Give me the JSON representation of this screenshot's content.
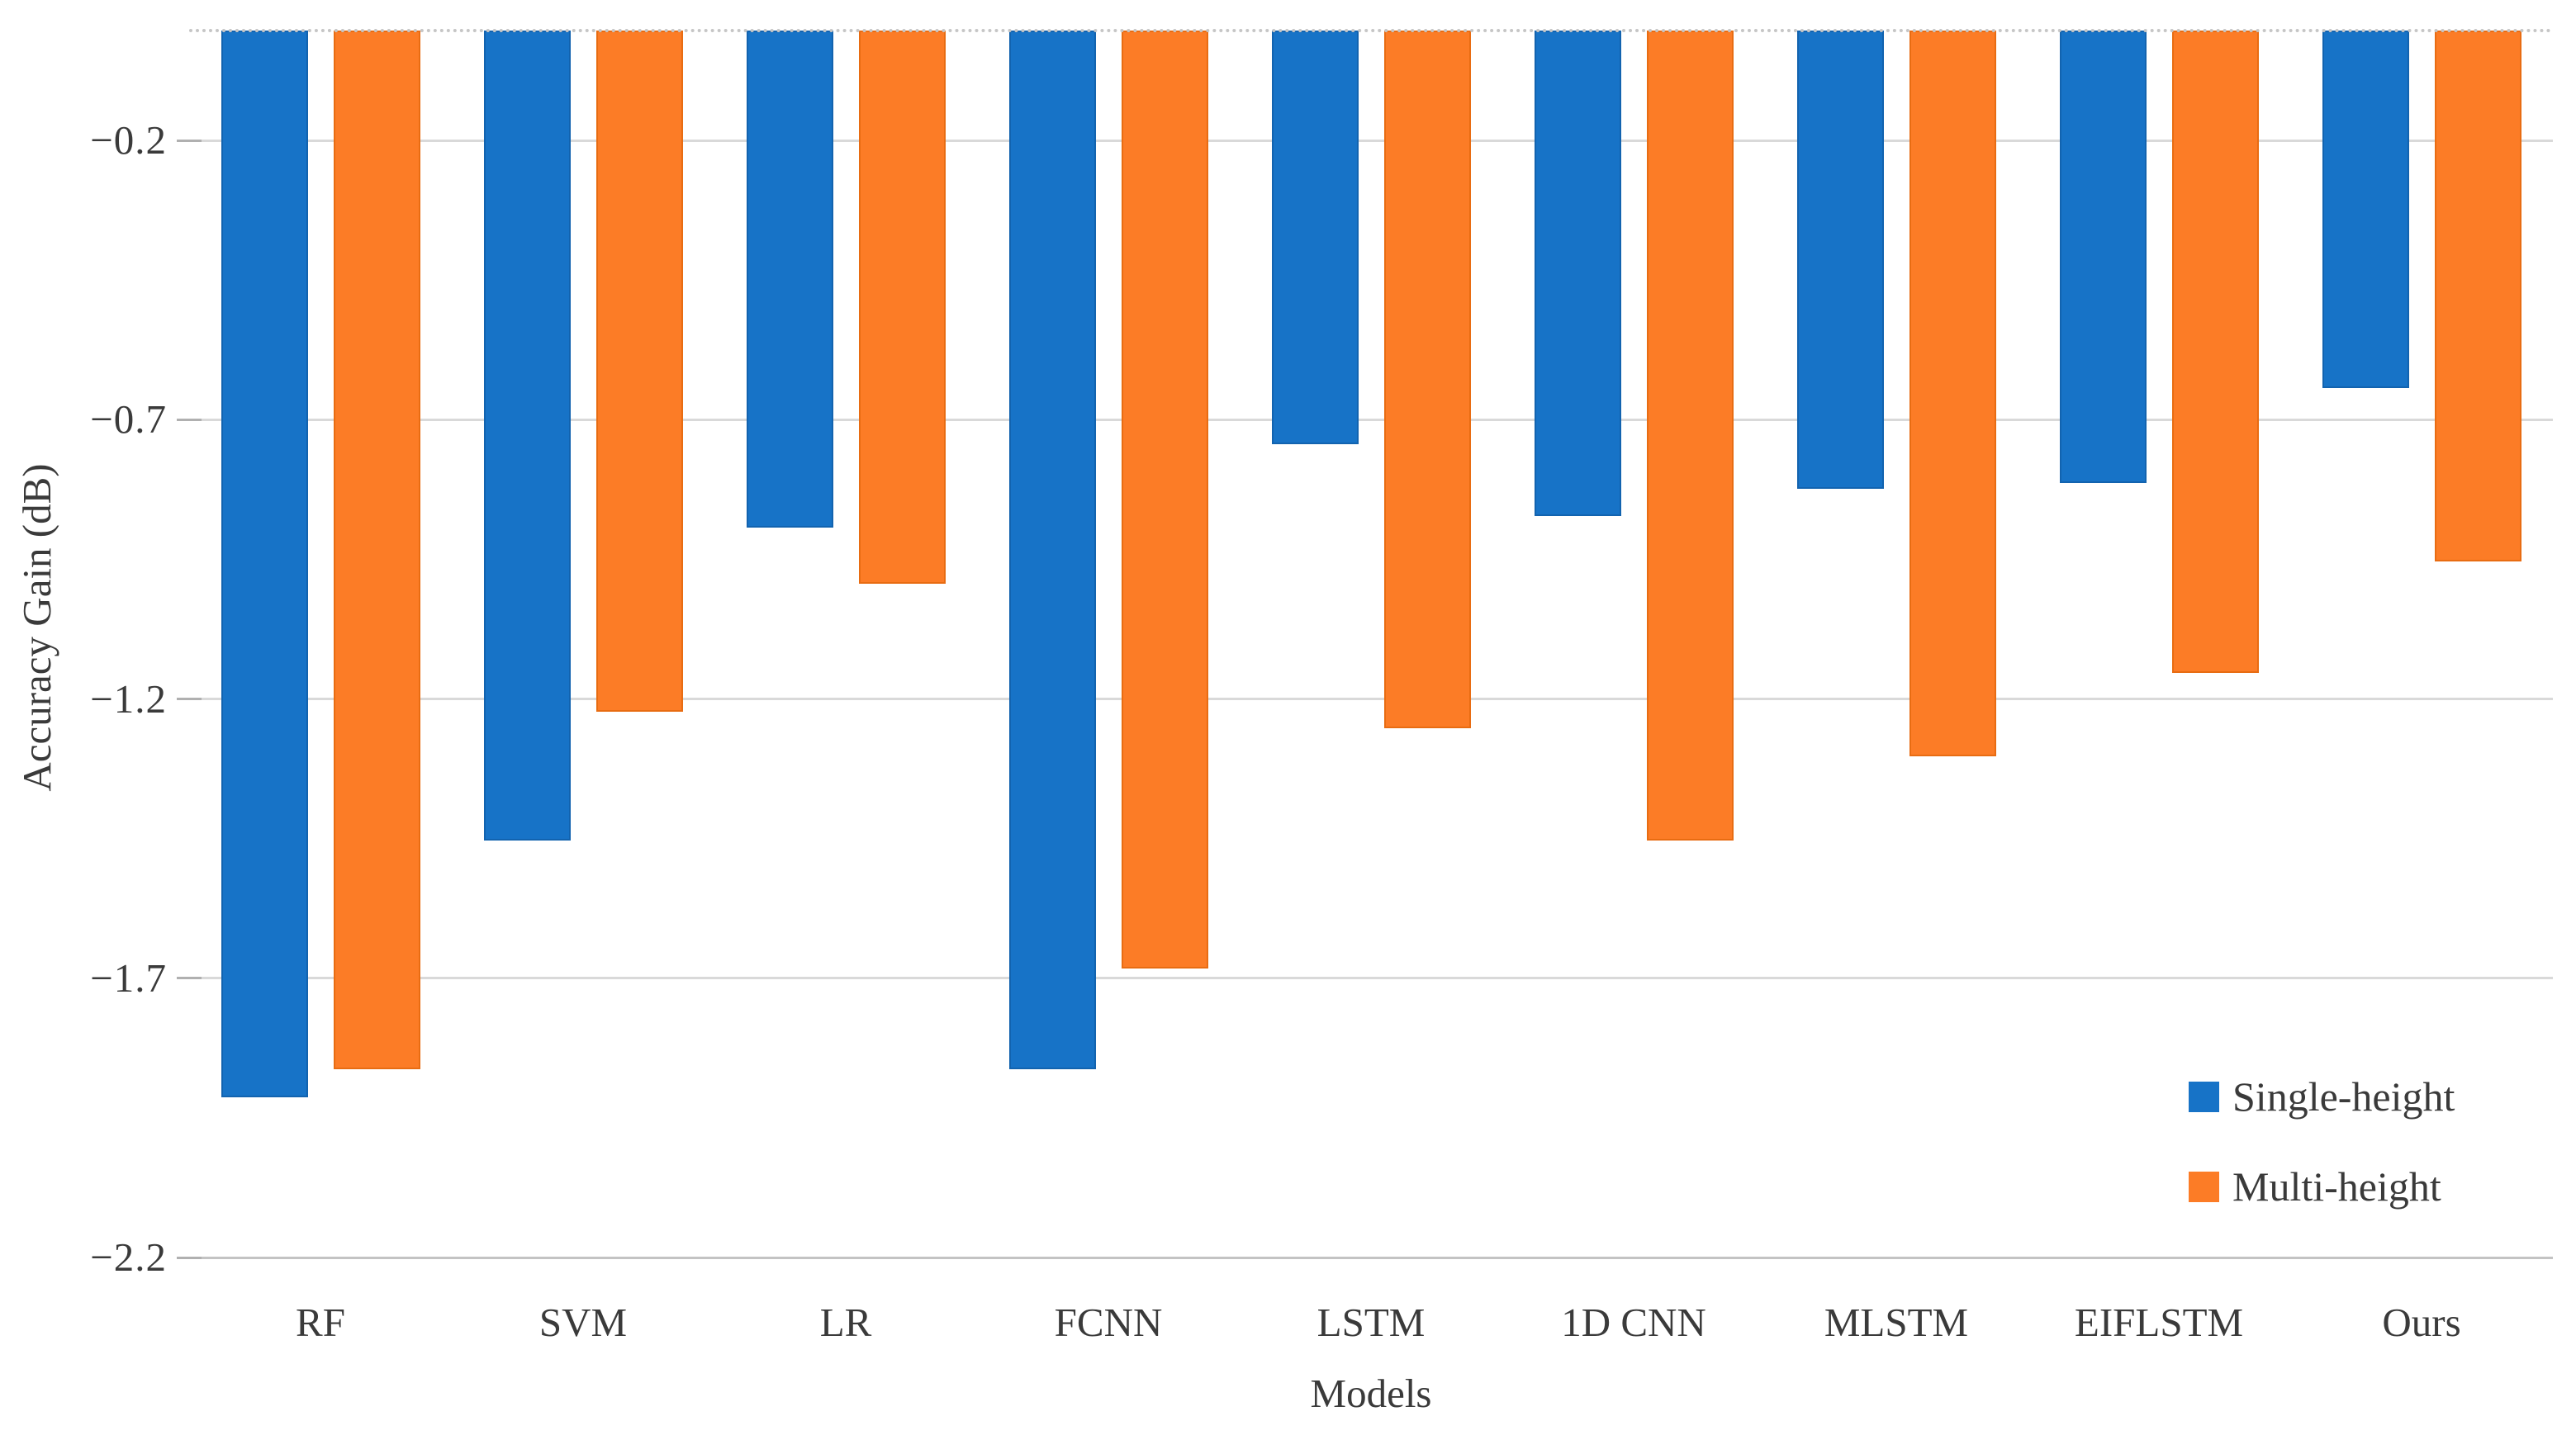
{
  "chart_data": {
    "type": "bar",
    "title": "",
    "categories": [
      "RF",
      "SVM",
      "LR",
      "FCNN",
      "LSTM",
      "1D CNN",
      "MLSTM",
      "EIFLSTM",
      "Ours"
    ],
    "series": [
      {
        "name": "Single-height",
        "color": "#1773C7",
        "edge_color": "#1263AF",
        "values": [
          -1.91,
          -1.45,
          -0.89,
          -1.86,
          -0.74,
          -0.87,
          -0.82,
          -0.81,
          -0.64
        ]
      },
      {
        "name": "Multi-height",
        "color": "#FC7C26",
        "edge_color": "#E86C12",
        "values": [
          -1.86,
          -1.22,
          -0.99,
          -1.68,
          -1.25,
          -1.45,
          -1.3,
          -1.15,
          -0.95
        ]
      }
    ],
    "xlabel": "Models",
    "ylabel": "Accuracy Gain (dB)",
    "ylim": [
      -2.2,
      0
    ],
    "yticks": [
      {
        "value": -0.2,
        "label": "−0.2"
      },
      {
        "value": -0.7,
        "label": "−0.7"
      },
      {
        "value": -1.2,
        "label": "−1.2"
      },
      {
        "value": -1.7,
        "label": "−1.7"
      },
      {
        "value": -2.2,
        "label": "−2.2"
      }
    ],
    "grid": true,
    "legend_position": "inside-bottom-right"
  },
  "legend": {
    "items": [
      {
        "label": "Single-height",
        "color": "#1773C7"
      },
      {
        "label": "Multi-height",
        "color": "#FC7C26"
      }
    ]
  },
  "colors": {
    "background": "#FFFFFF",
    "gridline": "#D9D9D9",
    "axis_line": "#C3C3C3",
    "tick_mark": "#B0B0B0",
    "text": "#3A3A3A"
  }
}
